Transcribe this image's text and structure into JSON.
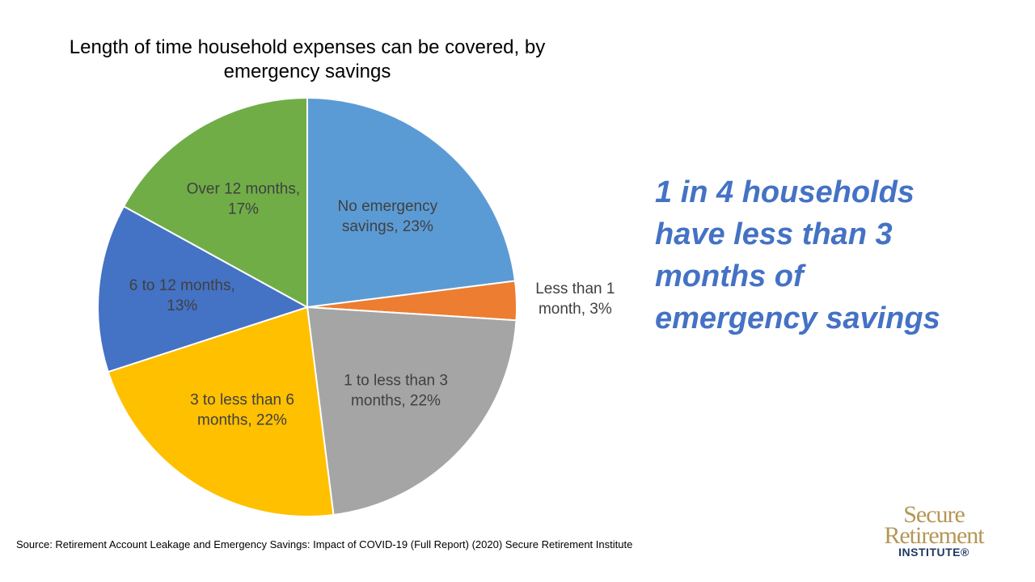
{
  "chart_data": {
    "type": "pie",
    "title": "Length of time household expenses can be covered, by\nemergency savings",
    "slices": [
      {
        "label": "No emergency savings",
        "value": 23,
        "display": "No emergency\nsavings, 23%",
        "color": "#5B9BD5"
      },
      {
        "label": "Less than 1 month",
        "value": 3,
        "display": "Less than 1\nmonth, 3%",
        "color": "#ED7D31"
      },
      {
        "label": "1 to less than 3 months",
        "value": 22,
        "display": "1 to less than 3\nmonths, 22%",
        "color": "#A5A5A5"
      },
      {
        "label": "3 to less than 6 months",
        "value": 22,
        "display": "3 to less than 6\nmonths, 22%",
        "color": "#FFC000"
      },
      {
        "label": "6 to 12 months",
        "value": 13,
        "display": "6 to 12 months,\n13%",
        "color": "#4472C4"
      },
      {
        "label": "Over 12 months",
        "value": 17,
        "display": "Over 12 months,\n17%",
        "color": "#70AD47"
      }
    ]
  },
  "headline": "1 in 4 households\nhave less than 3\nmonths of\nemergency savings",
  "source": "Source: Retirement Account Leakage and Emergency Savings: Impact of COVID-19 (Full Report) (2020) Secure Retirement Institute",
  "logo": {
    "line1": "Secure",
    "line2": "Retirement",
    "line3": "INSTITUTE®"
  }
}
